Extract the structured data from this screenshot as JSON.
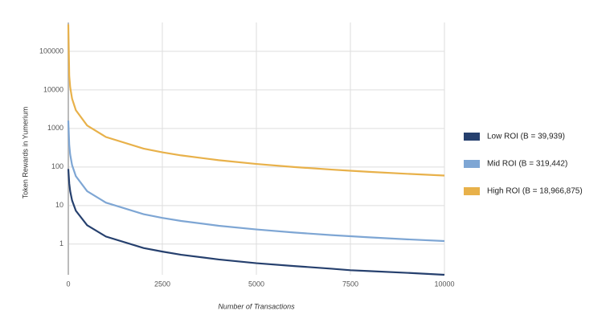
{
  "chart_data": {
    "type": "line",
    "x_label": "Number of Transactions",
    "y_label": "Token Rewards in Yumerium",
    "x": [
      0,
      25,
      50,
      100,
      200,
      500,
      1000,
      2000,
      2500,
      3000,
      4000,
      5000,
      6000,
      7000,
      7500,
      8000,
      9000,
      10000
    ],
    "series": [
      {
        "name": "Low ROI (B = 39,939)",
        "color": "#26406e",
        "values": [
          88.9,
          37.2,
          23.5,
          13.6,
          7.34,
          3.09,
          1.57,
          0.79,
          0.64,
          0.53,
          0.4,
          0.32,
          0.27,
          0.23,
          0.21,
          0.2,
          0.18,
          0.16
        ]
      },
      {
        "name": "Mid ROI (B = 319,442)",
        "color": "#7ea6d4",
        "values": [
          1600,
          369,
          209,
          112,
          57.8,
          23.6,
          11.9,
          5.98,
          4.79,
          3.99,
          2.99,
          2.4,
          2,
          1.71,
          1.6,
          1.5,
          1.33,
          1.2
        ]
      },
      {
        "name": "High ROI (B = 18,966,875)",
        "color": "#e8b14a",
        "values": [
          500000,
          22900,
          11719,
          5929,
          2982,
          1196,
          600,
          300,
          240,
          200,
          150,
          120,
          100,
          85.7,
          80,
          75,
          66.7,
          60
        ]
      }
    ],
    "xlim": [
      0,
      10000
    ],
    "xticks": [
      0,
      2500,
      5000,
      7500,
      10000
    ],
    "ylim": [
      0.16,
      560000
    ],
    "yticks": [
      1,
      10,
      100,
      1000,
      10000,
      100000
    ],
    "y_log": true,
    "grid": true,
    "legend": "right"
  }
}
